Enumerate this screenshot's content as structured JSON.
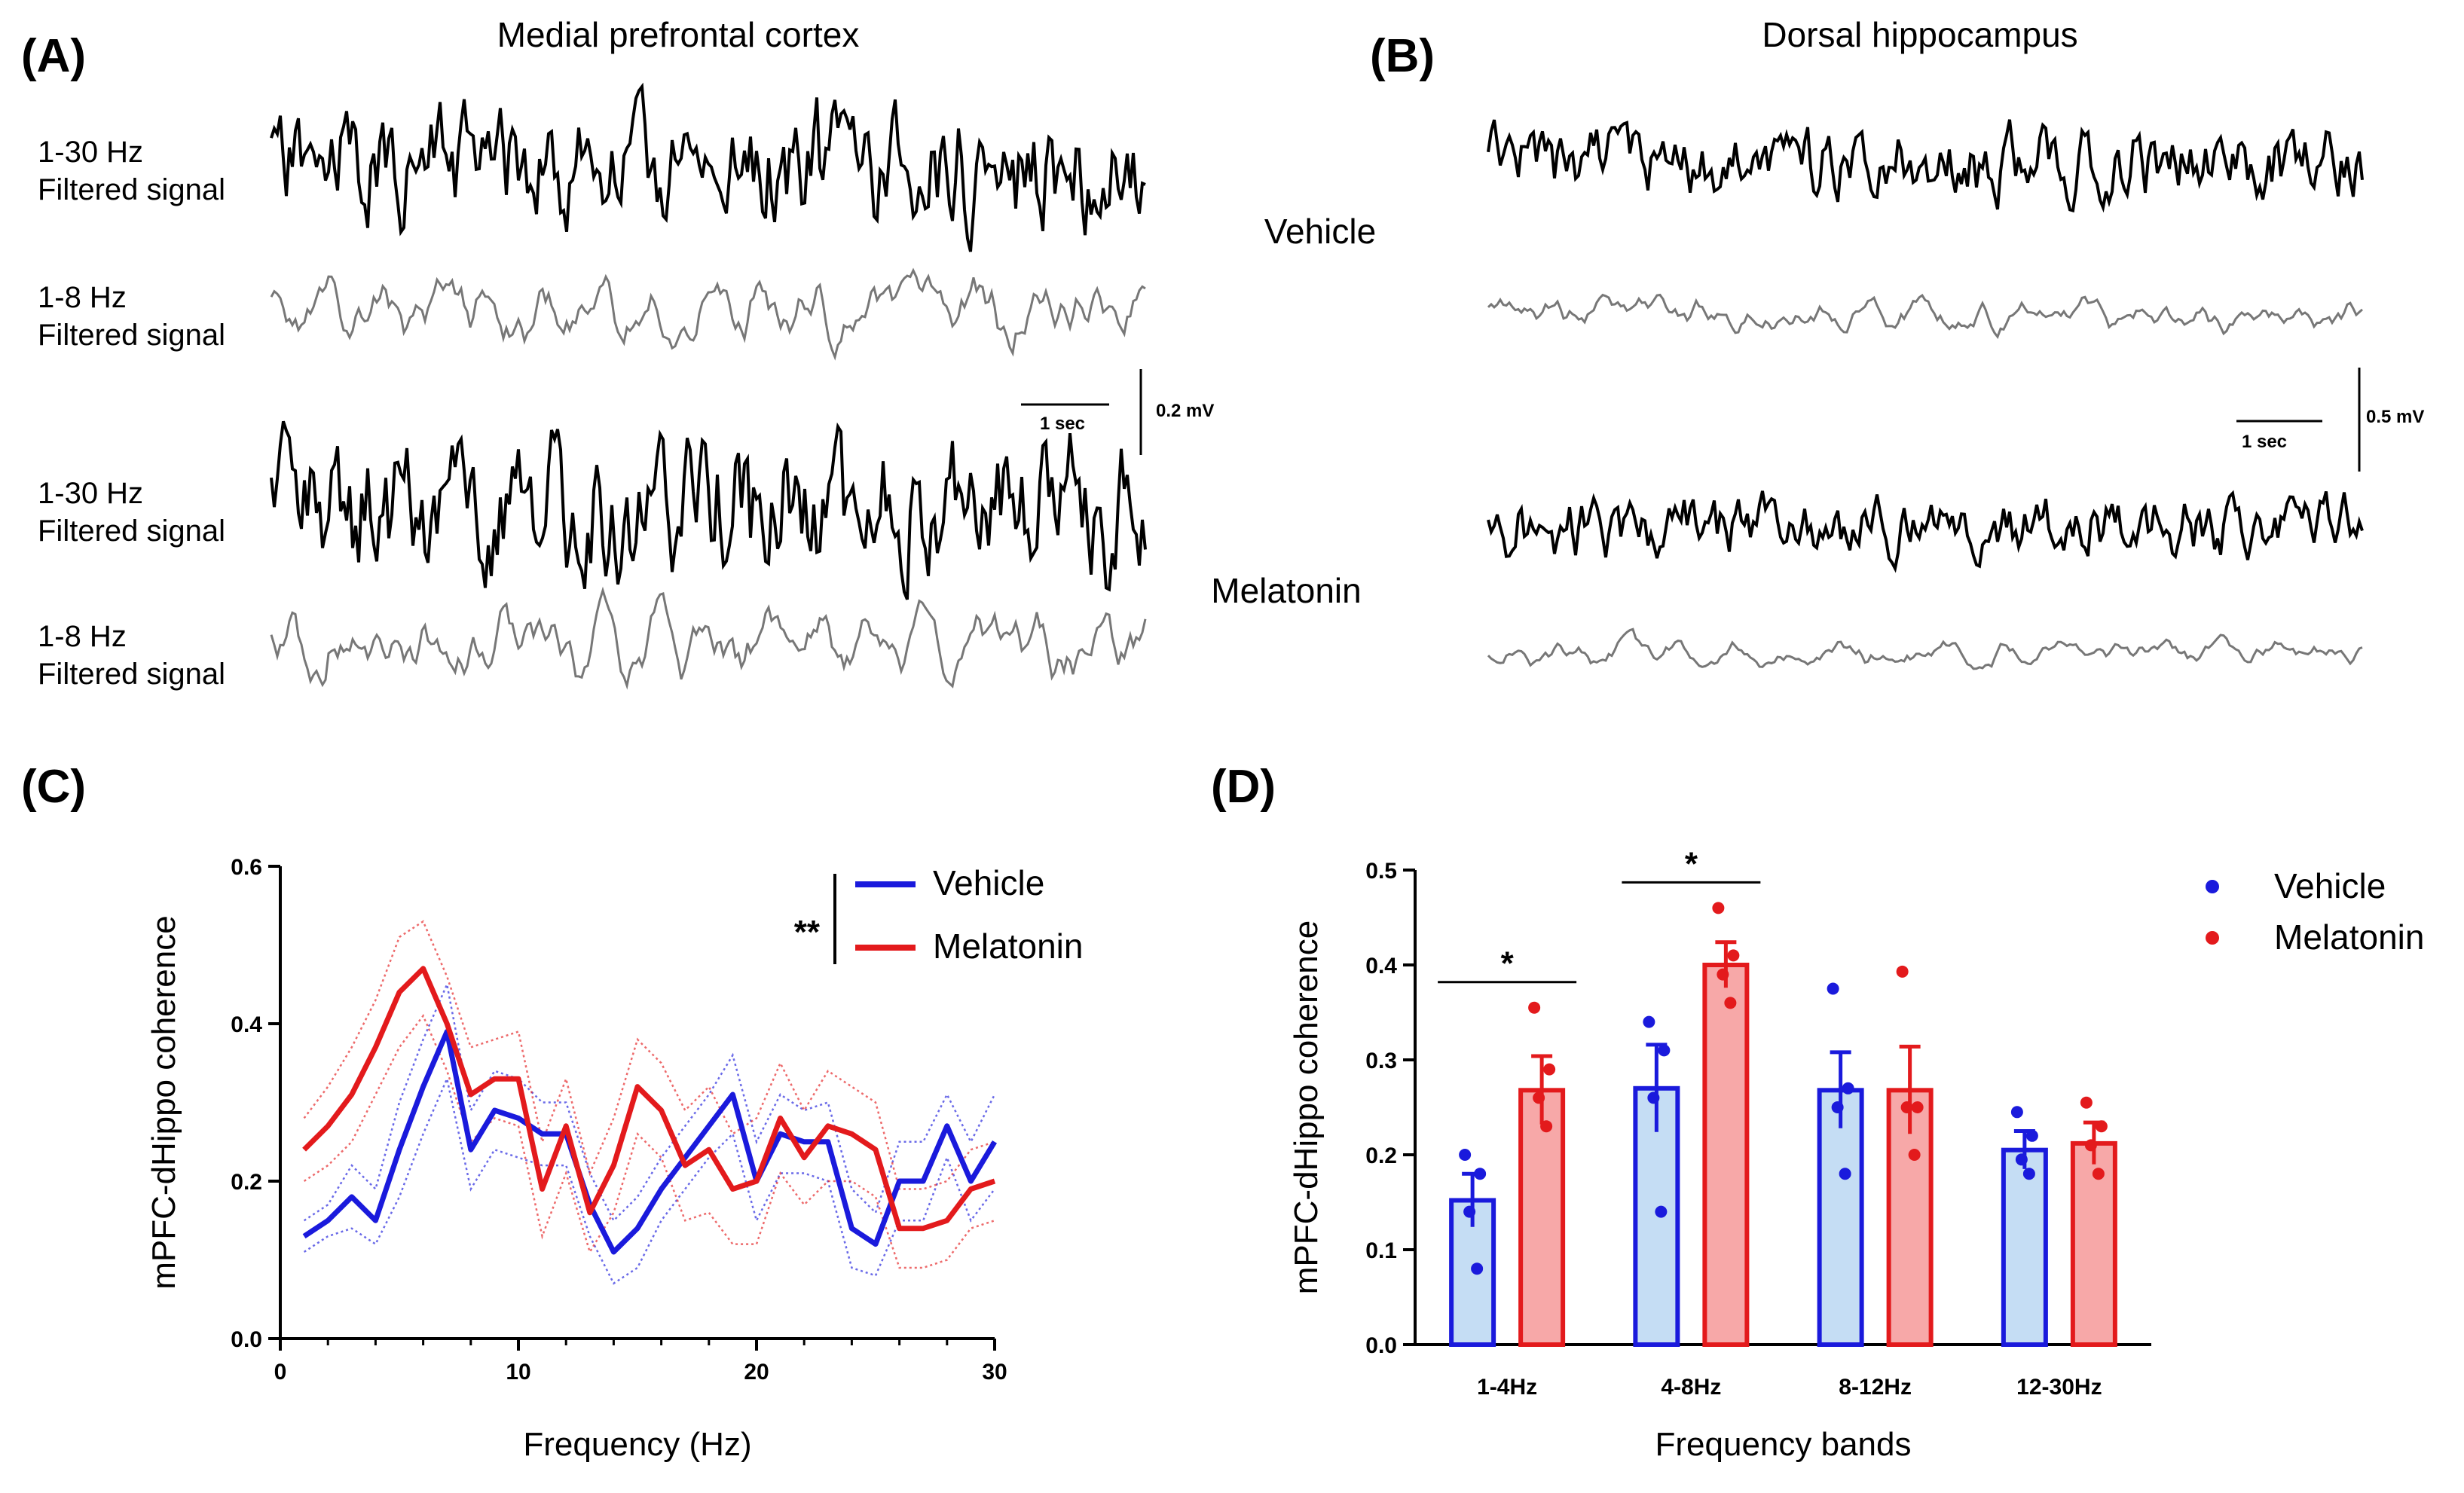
{
  "panels": {
    "a": {
      "letter": "(A)",
      "title": "Medial prefrontal  cortex"
    },
    "b": {
      "letter": "(B)",
      "title": "Dorsal hippocampus"
    },
    "c": {
      "letter": "(C)"
    },
    "d": {
      "letter": "(D)"
    }
  },
  "traces": {
    "band_broad": "1-30 Hz",
    "band_theta": "1-8 Hz",
    "filtered": "Filtered signal",
    "cond_vehicle": "Vehicle",
    "cond_melatonin": "Melatonin",
    "scale_time": "1 sec",
    "scale_amp_a": "0.2 mV",
    "scale_amp_b": "0.5 mV"
  },
  "chart_data": [
    {
      "type": "line",
      "title": "",
      "xlabel": "Frequency (Hz)",
      "ylabel": "mPFC-dHippo coherence",
      "xlim": [
        0,
        30
      ],
      "ylim": [
        0,
        0.6
      ],
      "xticks": [
        "0",
        "10",
        "20",
        "30"
      ],
      "yticks": [
        "0.0",
        "0.2",
        "0.4",
        "0.6"
      ],
      "significance": "**",
      "x": [
        1,
        2,
        3,
        4,
        5,
        6,
        7,
        8,
        9,
        10,
        11,
        12,
        13,
        14,
        15,
        16,
        17,
        18,
        19,
        20,
        21,
        22,
        23,
        24,
        25,
        26,
        27,
        28,
        29,
        30
      ],
      "series": [
        {
          "name": "Vehicle",
          "color": "#1a1adc",
          "values": [
            0.13,
            0.15,
            0.18,
            0.15,
            0.24,
            0.32,
            0.39,
            0.24,
            0.29,
            0.28,
            0.26,
            0.26,
            0.17,
            0.11,
            0.14,
            0.19,
            0.23,
            0.27,
            0.31,
            0.2,
            0.26,
            0.25,
            0.25,
            0.14,
            0.12,
            0.2,
            0.2,
            0.27,
            0.2,
            0.25
          ],
          "upper": [
            0.15,
            0.17,
            0.22,
            0.19,
            0.3,
            0.38,
            0.45,
            0.29,
            0.34,
            0.33,
            0.3,
            0.3,
            0.21,
            0.15,
            0.18,
            0.23,
            0.27,
            0.31,
            0.36,
            0.25,
            0.31,
            0.29,
            0.3,
            0.19,
            0.16,
            0.25,
            0.25,
            0.31,
            0.25,
            0.31
          ],
          "lower": [
            0.11,
            0.13,
            0.14,
            0.12,
            0.18,
            0.26,
            0.33,
            0.19,
            0.24,
            0.23,
            0.22,
            0.22,
            0.13,
            0.07,
            0.09,
            0.15,
            0.19,
            0.23,
            0.26,
            0.15,
            0.21,
            0.21,
            0.2,
            0.09,
            0.08,
            0.15,
            0.15,
            0.23,
            0.15,
            0.19
          ]
        },
        {
          "name": "Melatonin",
          "color": "#e31a1c",
          "values": [
            0.24,
            0.27,
            0.31,
            0.37,
            0.44,
            0.47,
            0.4,
            0.31,
            0.33,
            0.33,
            0.19,
            0.27,
            0.16,
            0.22,
            0.32,
            0.29,
            0.22,
            0.24,
            0.19,
            0.2,
            0.28,
            0.23,
            0.27,
            0.26,
            0.24,
            0.14,
            0.14,
            0.15,
            0.19,
            0.2
          ],
          "upper": [
            0.28,
            0.32,
            0.37,
            0.43,
            0.51,
            0.53,
            0.46,
            0.37,
            0.38,
            0.39,
            0.25,
            0.33,
            0.21,
            0.28,
            0.38,
            0.35,
            0.29,
            0.32,
            0.26,
            0.28,
            0.35,
            0.29,
            0.34,
            0.32,
            0.3,
            0.19,
            0.19,
            0.2,
            0.24,
            0.25
          ],
          "lower": [
            0.2,
            0.22,
            0.25,
            0.31,
            0.37,
            0.41,
            0.34,
            0.25,
            0.28,
            0.27,
            0.13,
            0.21,
            0.11,
            0.16,
            0.26,
            0.23,
            0.15,
            0.16,
            0.12,
            0.12,
            0.21,
            0.17,
            0.2,
            0.2,
            0.18,
            0.09,
            0.09,
            0.1,
            0.14,
            0.15
          ]
        }
      ]
    },
    {
      "type": "bar",
      "title": "",
      "xlabel": "Frequency bands",
      "ylabel": "mPFC-dHippo coherence",
      "ylim": [
        0,
        0.5
      ],
      "yticks": [
        "0.0",
        "0.1",
        "0.2",
        "0.3",
        "0.4",
        "0.5"
      ],
      "categories": [
        "1-4Hz",
        "4-8Hz",
        "8-12Hz",
        "12-30Hz"
      ],
      "significance": [
        "*",
        "*",
        "",
        ""
      ],
      "series": [
        {
          "name": "Vehicle",
          "color": "#1a1adc",
          "fill": "#c5ddf4",
          "values": [
            0.152,
            0.27,
            0.268,
            0.205
          ],
          "sem": [
            0.028,
            0.046,
            0.04,
            0.02
          ],
          "points": [
            [
              0.2,
              0.18,
              0.14,
              0.08
            ],
            [
              0.34,
              0.31,
              0.26,
              0.14
            ],
            [
              0.375,
              0.27,
              0.25,
              0.18
            ],
            [
              0.245,
              0.22,
              0.195,
              0.18
            ]
          ]
        },
        {
          "name": "Melatonin",
          "color": "#e31a1c",
          "fill": "#f7a8a8",
          "values": [
            0.268,
            0.4,
            0.268,
            0.212
          ],
          "sem": [
            0.036,
            0.024,
            0.046,
            0.022
          ],
          "points": [
            [
              0.355,
              0.29,
              0.26,
              0.23
            ],
            [
              0.46,
              0.41,
              0.39,
              0.36
            ],
            [
              0.393,
              0.25,
              0.25,
              0.2
            ],
            [
              0.255,
              0.23,
              0.21,
              0.18
            ]
          ]
        }
      ]
    }
  ]
}
